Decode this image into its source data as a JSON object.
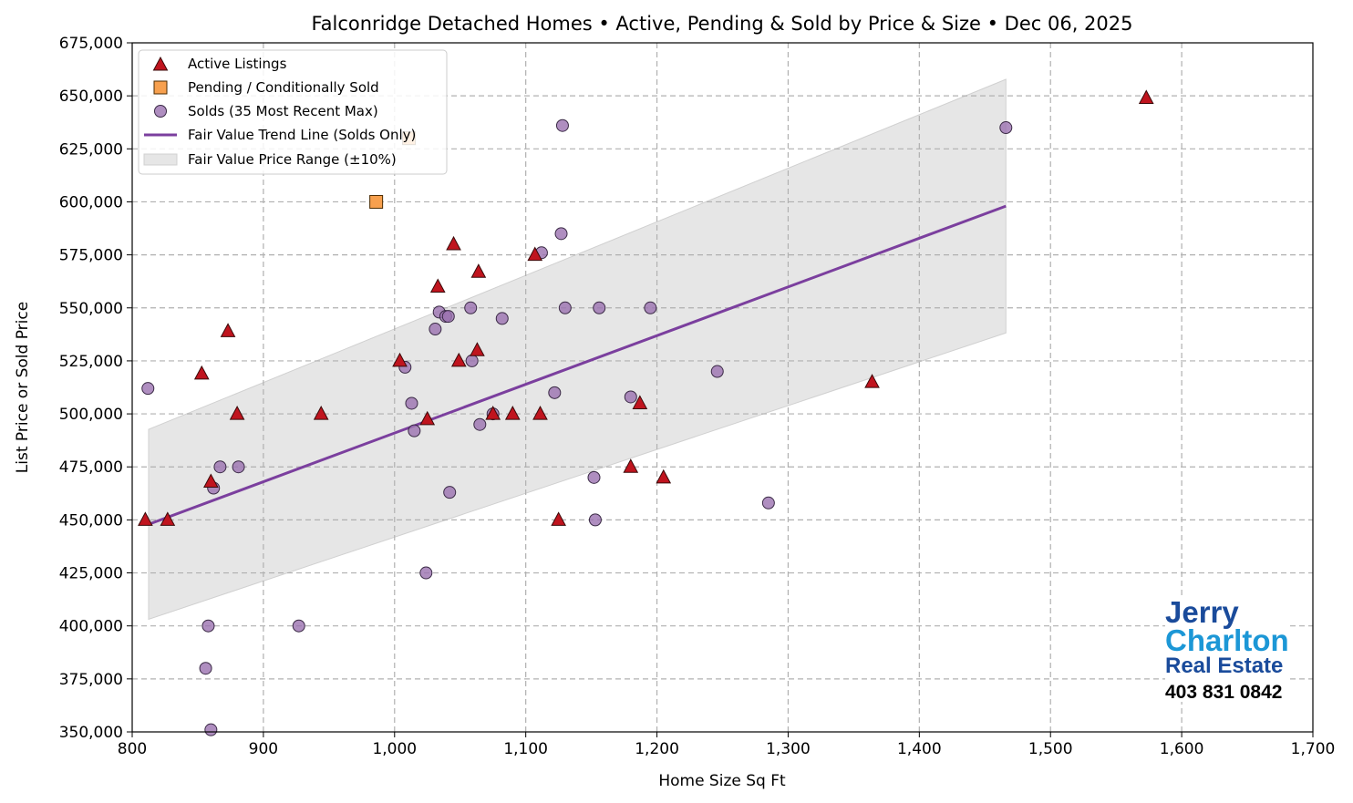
{
  "chart_data": {
    "type": "scatter",
    "title": "Falconridge Detached Homes • Active, Pending & Sold by Price & Size • Dec 06, 2025",
    "xlabel": "Home Size Sq Ft",
    "ylabel": "List Price or Sold Price",
    "xlim": [
      800,
      1700
    ],
    "ylim": [
      350000,
      675000
    ],
    "xticks": [
      800,
      900,
      1000,
      1100,
      1200,
      1300,
      1400,
      1500,
      1600,
      1700
    ],
    "xtick_labels": [
      "800",
      "900",
      "1,000",
      "1,100",
      "1,200",
      "1,300",
      "1,400",
      "1,500",
      "1,600",
      "1,700"
    ],
    "yticks": [
      350000,
      375000,
      400000,
      425000,
      450000,
      475000,
      500000,
      525000,
      550000,
      575000,
      600000,
      625000,
      650000,
      675000
    ],
    "ytick_labels": [
      "350,000",
      "375,000",
      "400,000",
      "425,000",
      "450,000",
      "475,000",
      "500,000",
      "525,000",
      "550,000",
      "575,000",
      "600,000",
      "625,000",
      "650,000",
      "675,000"
    ],
    "grid": true,
    "legend_placement": "top-left",
    "series": [
      {
        "name": "Active Listings",
        "marker": "triangle",
        "color": "#c0141e",
        "points": [
          [
            810,
            450000
          ],
          [
            827,
            450000
          ],
          [
            853,
            519000
          ],
          [
            860,
            468000
          ],
          [
            873,
            539000
          ],
          [
            880,
            500000
          ],
          [
            944,
            500000
          ],
          [
            1004,
            525000
          ],
          [
            1025,
            497500
          ],
          [
            1033,
            560000
          ],
          [
            1045,
            580000
          ],
          [
            1049,
            525000
          ],
          [
            1063,
            530000
          ],
          [
            1064,
            567000
          ],
          [
            1075,
            500000
          ],
          [
            1090,
            500000
          ],
          [
            1107,
            575000
          ],
          [
            1111,
            500000
          ],
          [
            1125,
            450000
          ],
          [
            1180,
            475000
          ],
          [
            1187,
            505000
          ],
          [
            1205,
            470000
          ],
          [
            1364,
            515000
          ],
          [
            1573,
            649000
          ]
        ]
      },
      {
        "name": "Pending / Conditionally Sold",
        "marker": "square",
        "color": "#f7a04e",
        "points": [
          [
            986,
            600000
          ],
          [
            1011,
            630000
          ]
        ]
      },
      {
        "name": "Solds (35 Most Recent Max)",
        "marker": "circle",
        "color": "#9b72b0",
        "points": [
          [
            812,
            512000
          ],
          [
            858,
            400000
          ],
          [
            856,
            380000
          ],
          [
            860,
            351000
          ],
          [
            862,
            465000
          ],
          [
            867,
            475000
          ],
          [
            881,
            475000
          ],
          [
            927,
            400000
          ],
          [
            1008,
            522000
          ],
          [
            1013,
            505000
          ],
          [
            1015,
            492000
          ],
          [
            1024,
            425000
          ],
          [
            1031,
            540000
          ],
          [
            1034,
            548000
          ],
          [
            1039,
            546000
          ],
          [
            1041,
            546000
          ],
          [
            1042,
            463000
          ],
          [
            1058,
            550000
          ],
          [
            1059,
            525000
          ],
          [
            1065,
            495000
          ],
          [
            1075,
            500000
          ],
          [
            1082,
            545000
          ],
          [
            1112,
            576000
          ],
          [
            1122,
            510000
          ],
          [
            1127,
            585000
          ],
          [
            1128,
            636000
          ],
          [
            1130,
            550000
          ],
          [
            1152,
            470000
          ],
          [
            1153,
            450000
          ],
          [
            1156,
            550000
          ],
          [
            1180,
            508000
          ],
          [
            1195,
            550000
          ],
          [
            1246,
            520000
          ],
          [
            1285,
            458000
          ],
          [
            1466,
            635000
          ]
        ]
      },
      {
        "name": "Fair Value Trend Line (Solds Only)",
        "type": "line",
        "color": "#7b3f9e",
        "points": [
          [
            812.5,
            447900
          ],
          [
            1466,
            598000
          ]
        ]
      },
      {
        "name": "Fair Value Price Range (±10%)",
        "type": "band",
        "color": "#e6e6e6",
        "band_pct": 10
      }
    ]
  },
  "logo": {
    "line1": "Jerry",
    "line2": "Charlton",
    "line3": "Real Estate",
    "phone": "403 831 0842"
  }
}
